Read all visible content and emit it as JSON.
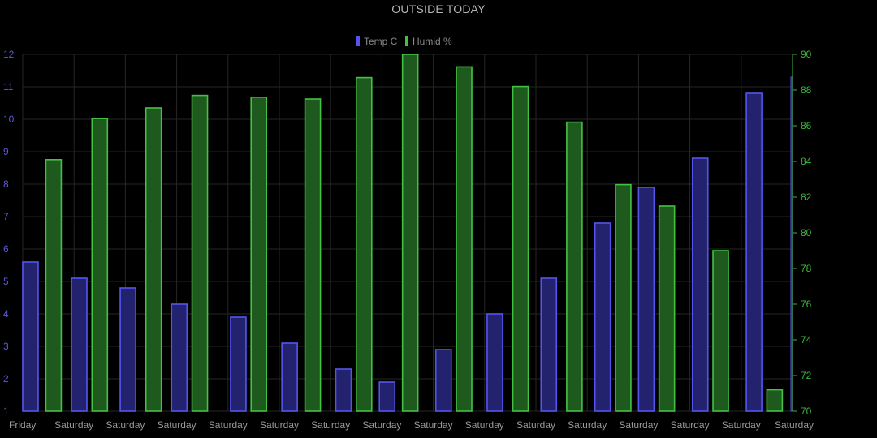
{
  "title": "OUTSIDE TODAY",
  "colors": {
    "temp": "#5555ee",
    "temp_fill": "#22226e",
    "humid": "#44c044",
    "humid_fill": "#1e5a1e",
    "grid": "#262626",
    "x_tick": "#9a9a9a",
    "left_tick": "#5a5ad8",
    "right_tick": "#3cb83c"
  },
  "chart_data": {
    "type": "bar",
    "categories": [
      "Friday",
      "Saturday",
      "Saturday",
      "Saturday",
      "Saturday",
      "Saturday",
      "Saturday",
      "Saturday",
      "Saturday",
      "Saturday",
      "Saturday",
      "Saturday",
      "Saturday",
      "Saturday",
      "Saturday",
      "Saturday"
    ],
    "legend": [
      "Temp C",
      "Humid %"
    ],
    "legend_position": "top-center",
    "grid": true,
    "left_axis": {
      "min": 1,
      "max": 12,
      "ticks": [
        1,
        2,
        3,
        4,
        5,
        6,
        7,
        8,
        9,
        10,
        11,
        12
      ]
    },
    "right_axis": {
      "min": 70,
      "max": 90,
      "ticks": [
        70,
        72,
        74,
        76,
        78,
        80,
        82,
        84,
        86,
        88,
        90
      ]
    },
    "series": [
      {
        "name": "Temp C",
        "axis": "left",
        "bars": [
          {
            "x": 0.15,
            "value": 5.6
          },
          {
            "x": 1.1,
            "value": 5.1
          },
          {
            "x": 2.05,
            "value": 4.8
          },
          {
            "x": 3.05,
            "value": 4.3
          },
          {
            "x": 4.2,
            "value": 3.9
          },
          {
            "x": 5.2,
            "value": 3.1
          },
          {
            "x": 6.25,
            "value": 2.3
          },
          {
            "x": 7.1,
            "value": 1.9
          },
          {
            "x": 8.2,
            "value": 2.9
          },
          {
            "x": 9.2,
            "value": 4.0
          },
          {
            "x": 10.25,
            "value": 5.1
          },
          {
            "x": 11.3,
            "value": 6.8
          },
          {
            "x": 12.15,
            "value": 7.9
          },
          {
            "x": 13.2,
            "value": 8.8
          },
          {
            "x": 14.25,
            "value": 10.8
          },
          {
            "x": 14.98,
            "value": 11.3
          }
        ]
      },
      {
        "name": "Humid %",
        "axis": "right",
        "bars": [
          {
            "x": 0.6,
            "value": 84.1
          },
          {
            "x": 1.5,
            "value": 86.4
          },
          {
            "x": 2.55,
            "value": 87.0
          },
          {
            "x": 3.45,
            "value": 87.7
          },
          {
            "x": 4.6,
            "value": 87.6
          },
          {
            "x": 5.65,
            "value": 87.5
          },
          {
            "x": 6.65,
            "value": 88.7
          },
          {
            "x": 7.55,
            "value": 90.0
          },
          {
            "x": 8.6,
            "value": 89.3
          },
          {
            "x": 9.7,
            "value": 88.2
          },
          {
            "x": 10.75,
            "value": 86.2
          },
          {
            "x": 11.7,
            "value": 82.7
          },
          {
            "x": 12.55,
            "value": 81.5
          },
          {
            "x": 13.6,
            "value": 79.0
          },
          {
            "x": 14.65,
            "value": 71.2
          }
        ]
      }
    ]
  }
}
